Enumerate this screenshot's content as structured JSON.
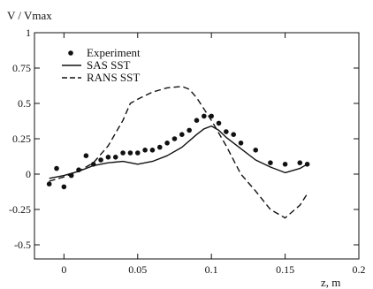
{
  "chart_data": {
    "type": "line",
    "title": "",
    "xlabel": "z, m",
    "ylabel": "V / Vmax",
    "xlim": [
      -0.02,
      0.2
    ],
    "ylim": [
      -0.6,
      1.0
    ],
    "xticks": [
      0,
      0.05,
      0.1,
      0.15,
      0.2
    ],
    "xtick_labels": [
      "0",
      "0.05",
      "0.1",
      "0.15",
      "0.2"
    ],
    "yticks": [
      -0.5,
      -0.25,
      0,
      0.25,
      0.5,
      0.75,
      1
    ],
    "ytick_labels": [
      "-0.5",
      "-0.25",
      "0",
      "0.25",
      "0.5",
      "0.75",
      "1"
    ],
    "grid": false,
    "legend_position": "top-left",
    "series": [
      {
        "name": "Experiment",
        "style": "markers",
        "color": "#111111",
        "x": [
          -0.01,
          -0.005,
          0.0,
          0.005,
          0.01,
          0.015,
          0.02,
          0.025,
          0.03,
          0.035,
          0.04,
          0.045,
          0.05,
          0.055,
          0.06,
          0.065,
          0.07,
          0.075,
          0.08,
          0.085,
          0.09,
          0.095,
          0.1,
          0.105,
          0.11,
          0.115,
          0.12,
          0.13,
          0.14,
          0.15,
          0.16,
          0.165
        ],
        "y": [
          -0.07,
          0.04,
          -0.09,
          -0.01,
          0.03,
          0.13,
          0.07,
          0.1,
          0.12,
          0.12,
          0.15,
          0.15,
          0.15,
          0.17,
          0.17,
          0.19,
          0.22,
          0.25,
          0.28,
          0.31,
          0.38,
          0.41,
          0.41,
          0.36,
          0.3,
          0.28,
          0.22,
          0.17,
          0.08,
          0.07,
          0.08,
          0.07
        ]
      },
      {
        "name": "SAS SST",
        "style": "solid",
        "color": "#111111",
        "x": [
          -0.01,
          0.0,
          0.01,
          0.02,
          0.03,
          0.04,
          0.05,
          0.06,
          0.07,
          0.08,
          0.09,
          0.095,
          0.1,
          0.105,
          0.11,
          0.12,
          0.13,
          0.14,
          0.15,
          0.16,
          0.165
        ],
        "y": [
          -0.03,
          -0.01,
          0.02,
          0.06,
          0.08,
          0.09,
          0.07,
          0.09,
          0.13,
          0.19,
          0.28,
          0.32,
          0.34,
          0.31,
          0.26,
          0.18,
          0.1,
          0.05,
          0.01,
          0.04,
          0.07
        ]
      },
      {
        "name": "RANS SST",
        "style": "dashed",
        "color": "#111111",
        "x": [
          -0.01,
          0.0,
          0.01,
          0.02,
          0.03,
          0.04,
          0.045,
          0.05,
          0.06,
          0.07,
          0.08,
          0.085,
          0.09,
          0.1,
          0.11,
          0.12,
          0.13,
          0.14,
          0.15,
          0.16,
          0.165
        ],
        "y": [
          -0.05,
          -0.02,
          0.02,
          0.08,
          0.2,
          0.38,
          0.5,
          0.53,
          0.58,
          0.61,
          0.62,
          0.6,
          0.54,
          0.38,
          0.2,
          0.0,
          -0.12,
          -0.25,
          -0.31,
          -0.22,
          -0.14
        ]
      }
    ]
  }
}
